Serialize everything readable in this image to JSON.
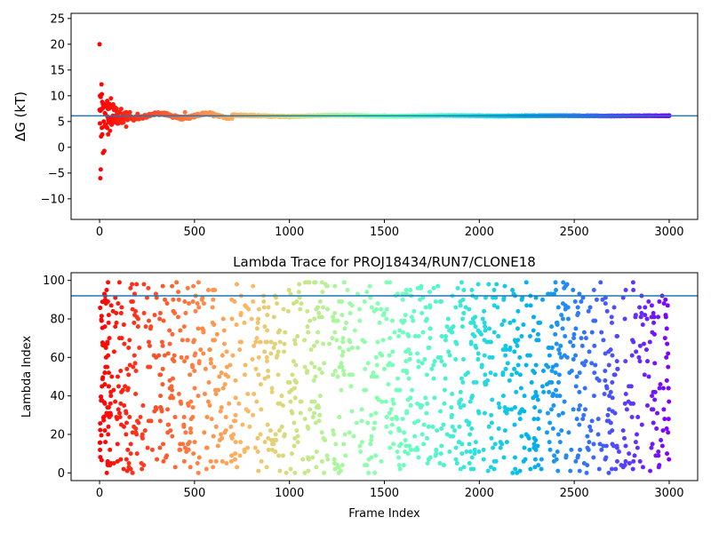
{
  "chart_data": [
    {
      "type": "scatter",
      "title": "",
      "xlabel": "",
      "ylabel": "ΔG (kT)",
      "xlim": [
        -150,
        3150
      ],
      "ylim": [
        -14,
        26
      ],
      "xticks": [
        0,
        500,
        1000,
        1500,
        2000,
        2500,
        3000
      ],
      "yticks": [
        -10,
        -5,
        0,
        5,
        10,
        15,
        20,
        25
      ],
      "reference_line": 6.1,
      "reference_line_color": "#1f77b4",
      "colormap": "rainbow (early frames red, late frames violet)",
      "n_points": 3000,
      "description_of_trend": "values scatter widely in the first ~150 frames then converge to ~6.1",
      "points": [
        {
          "x": 0,
          "y": 20.0
        },
        {
          "x": 2,
          "y": 10.0
        },
        {
          "x": 4,
          "y": -6.0
        },
        {
          "x": 6,
          "y": -4.3
        },
        {
          "x": 8,
          "y": 2.1
        },
        {
          "x": 10,
          "y": 12.2
        },
        {
          "x": 12,
          "y": 10.3
        },
        {
          "x": 14,
          "y": 2.5
        },
        {
          "x": 18,
          "y": -1.1
        },
        {
          "x": 22,
          "y": 8.4
        },
        {
          "x": 25,
          "y": -0.7
        },
        {
          "x": 30,
          "y": 6.5
        },
        {
          "x": 35,
          "y": 4.0
        },
        {
          "x": 40,
          "y": 9.0
        },
        {
          "x": 45,
          "y": 2.5
        },
        {
          "x": 50,
          "y": 7.5
        },
        {
          "x": 55,
          "y": 3.2
        },
        {
          "x": 60,
          "y": 9.5
        },
        {
          "x": 65,
          "y": 4.5
        },
        {
          "x": 70,
          "y": 7.8
        },
        {
          "x": 80,
          "y": 5.0
        },
        {
          "x": 90,
          "y": 7.0
        },
        {
          "x": 100,
          "y": 5.5
        },
        {
          "x": 120,
          "y": 6.5
        },
        {
          "x": 140,
          "y": 4.0
        },
        {
          "x": 160,
          "y": 6.8
        },
        {
          "x": 180,
          "y": 5.2
        },
        {
          "x": 200,
          "y": 6.5
        },
        {
          "x": 250,
          "y": 5.8
        },
        {
          "x": 300,
          "y": 6.6
        },
        {
          "x": 400,
          "y": 6.2
        },
        {
          "x": 450,
          "y": 6.8
        },
        {
          "x": 500,
          "y": 5.8
        },
        {
          "x": 600,
          "y": 6.0
        },
        {
          "x": 1000,
          "y": 5.8
        },
        {
          "x": 1500,
          "y": 6.2
        },
        {
          "x": 2000,
          "y": 6.2
        },
        {
          "x": 2500,
          "y": 6.2
        },
        {
          "x": 3000,
          "y": 6.2
        }
      ]
    },
    {
      "type": "scatter",
      "title": "Lambda Trace for PROJ18434/RUN7/CLONE18",
      "xlabel": "Frame Index",
      "ylabel": "Lambda Index",
      "xlim": [
        -150,
        3150
      ],
      "ylim": [
        -4,
        104
      ],
      "xticks": [
        0,
        500,
        1000,
        1500,
        2000,
        2500,
        3000
      ],
      "yticks": [
        0,
        20,
        40,
        60,
        80,
        100
      ],
      "reference_line": 92,
      "reference_line_color": "#1f77b4",
      "colormap": "rainbow (early frames red, late frames violet)",
      "n_points": 1500,
      "description_of_trend": "lambda index sampled roughly uniformly over 0-99 across all frames",
      "y_range_of_points": [
        0,
        99
      ]
    }
  ],
  "colors": {
    "reference_line": "#1f77b4",
    "axis": "#000000"
  }
}
